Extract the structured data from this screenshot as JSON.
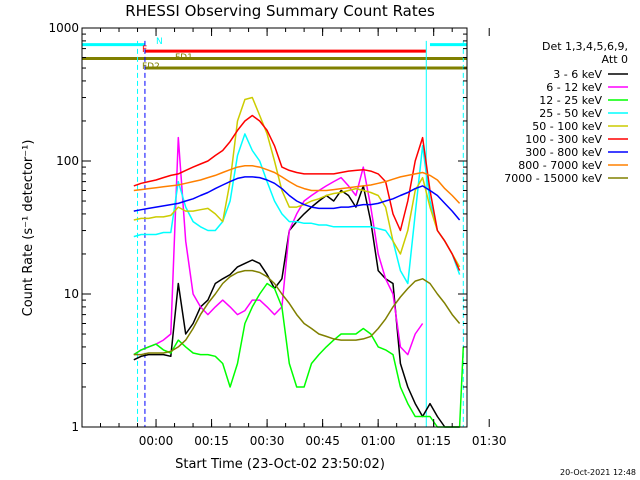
{
  "chart_data": {
    "type": "line",
    "title": "RHESSI Observing Summary Count Rates",
    "xlabel": "Start Time (23-Oct-02 23:50:02)",
    "ylabel": "Count Rate (s⁻¹ detector⁻¹)",
    "y_scale": "log",
    "ylim": [
      1,
      1000
    ],
    "x_unit": "minutes since 23:50:02",
    "xlim": [
      -10,
      94
    ],
    "x_ticks": [
      {
        "v": 10,
        "label": "00:00"
      },
      {
        "v": 25,
        "label": "00:15"
      },
      {
        "v": 40,
        "label": "00:30"
      },
      {
        "v": 55,
        "label": "00:45"
      },
      {
        "v": 70,
        "label": "01:00"
      },
      {
        "v": 85,
        "label": "01:15"
      },
      {
        "v": 100,
        "label": "01:30"
      }
    ],
    "y_ticks": [
      {
        "v": 1,
        "label": "1"
      },
      {
        "v": 10,
        "label": "10"
      },
      {
        "v": 100,
        "label": "100"
      },
      {
        "v": 1000,
        "label": "1000"
      }
    ],
    "legend_header": [
      "Det 1,3,4,5,6,9,",
      "Att 0"
    ],
    "legend_position": "top-right",
    "timestamp": "20-Oct-2021 12:48",
    "series": [
      {
        "name": "3 - 6 keV",
        "color": "#000000",
        "x": [
          4,
          6,
          8,
          10,
          12,
          14,
          16,
          18,
          20,
          22,
          24,
          26,
          28,
          30,
          32,
          34,
          36,
          38,
          40,
          42,
          44,
          46,
          48,
          50,
          52,
          54,
          56,
          58,
          60,
          62,
          64,
          66,
          68,
          70,
          72,
          74,
          76,
          78,
          80,
          82,
          84,
          86,
          88,
          90,
          92
        ],
        "y": [
          3.2,
          3.4,
          3.5,
          3.5,
          3.5,
          3.4,
          12,
          5,
          6,
          8,
          9,
          12,
          13,
          14,
          16,
          17,
          18,
          17,
          14,
          11,
          13,
          30,
          35,
          40,
          45,
          50,
          55,
          50,
          60,
          55,
          45,
          65,
          35,
          15,
          13,
          12,
          3,
          2,
          1.5,
          1.2,
          1.5,
          1.2,
          1,
          1,
          1
        ]
      },
      {
        "name": "6 - 12 keV",
        "color": "#ff00ff",
        "x": [
          4,
          6,
          8,
          10,
          12,
          14,
          16,
          18,
          20,
          22,
          24,
          26,
          28,
          30,
          32,
          34,
          36,
          38,
          40,
          42,
          44,
          46,
          48,
          50,
          52,
          54,
          56,
          58,
          60,
          62,
          64,
          66,
          68,
          70,
          72,
          74,
          76,
          78,
          80,
          82
        ],
        "y": [
          3.5,
          3.8,
          4,
          4.2,
          4.5,
          5,
          150,
          25,
          10,
          8,
          7,
          8,
          9,
          8,
          7,
          7.5,
          9,
          9,
          8,
          7,
          8,
          30,
          40,
          50,
          55,
          60,
          65,
          70,
          75,
          65,
          55,
          90,
          45,
          20,
          13,
          10,
          4,
          3.5,
          5,
          6
        ]
      },
      {
        "name": "12 - 25 keV",
        "color": "#00ff00",
        "x": [
          4,
          6,
          8,
          10,
          12,
          14,
          16,
          18,
          20,
          22,
          24,
          26,
          28,
          30,
          32,
          34,
          36,
          38,
          40,
          42,
          44,
          46,
          48,
          50,
          52,
          54,
          56,
          58,
          60,
          62,
          64,
          66,
          68,
          70,
          72,
          74,
          76,
          78,
          80,
          82,
          84,
          86,
          88,
          90,
          92,
          93
        ],
        "y": [
          3.5,
          3.8,
          4,
          4.2,
          3.8,
          3.6,
          4.5,
          4,
          3.6,
          3.5,
          3.5,
          3.4,
          3,
          2,
          3,
          6,
          8,
          10,
          12,
          11,
          8,
          3,
          2,
          2,
          3,
          3.5,
          4,
          4.5,
          5,
          5,
          5,
          5.5,
          5,
          4,
          3.8,
          3.5,
          2,
          1.5,
          1.2,
          1.2,
          1.2,
          1,
          1,
          1,
          1,
          4
        ]
      },
      {
        "name": "25 - 50 keV",
        "color": "#00ffff",
        "x": [
          4,
          6,
          8,
          10,
          12,
          14,
          16,
          18,
          20,
          22,
          24,
          26,
          28,
          30,
          32,
          34,
          36,
          38,
          40,
          42,
          44,
          46,
          48,
          50,
          52,
          54,
          56,
          58,
          60,
          62,
          64,
          66,
          68,
          70,
          72,
          74,
          76,
          78,
          80,
          82,
          84,
          86,
          88,
          90,
          92
        ],
        "y": [
          27,
          28,
          28,
          28,
          29,
          29,
          70,
          45,
          35,
          32,
          30,
          30,
          35,
          50,
          110,
          160,
          120,
          100,
          70,
          50,
          40,
          35,
          35,
          34,
          34,
          33,
          33,
          32,
          32,
          32,
          32,
          32,
          32,
          31,
          30,
          25,
          15,
          12,
          40,
          130,
          50,
          30,
          25,
          20,
          14
        ]
      },
      {
        "name": "50 - 100 keV",
        "color": "#cccc00",
        "x": [
          4,
          6,
          8,
          10,
          12,
          14,
          16,
          18,
          20,
          22,
          24,
          26,
          28,
          30,
          32,
          34,
          36,
          38,
          40,
          42,
          44,
          46,
          48,
          50,
          52,
          54,
          56,
          58,
          60,
          62,
          64,
          66,
          68,
          70,
          72,
          74,
          76,
          78,
          80,
          82,
          84,
          86,
          88,
          90,
          92
        ],
        "y": [
          36,
          37,
          37,
          38,
          38,
          39,
          45,
          42,
          42,
          43,
          44,
          40,
          35,
          70,
          200,
          290,
          300,
          220,
          160,
          100,
          60,
          45,
          45,
          47,
          50,
          52,
          55,
          57,
          58,
          60,
          62,
          60,
          58,
          55,
          45,
          25,
          20,
          30,
          60,
          75,
          45,
          30,
          25,
          20,
          16
        ]
      },
      {
        "name": "100 - 300 keV",
        "color": "#ff0000",
        "x": [
          4,
          6,
          8,
          10,
          12,
          14,
          16,
          18,
          20,
          22,
          24,
          26,
          28,
          30,
          32,
          34,
          36,
          38,
          40,
          42,
          44,
          46,
          48,
          50,
          52,
          54,
          56,
          58,
          60,
          62,
          64,
          66,
          68,
          70,
          72,
          74,
          76,
          78,
          80,
          82,
          84,
          86,
          88,
          90,
          92
        ],
        "y": [
          65,
          68,
          70,
          72,
          75,
          78,
          80,
          85,
          90,
          95,
          100,
          110,
          120,
          140,
          170,
          200,
          220,
          200,
          170,
          130,
          90,
          85,
          82,
          80,
          80,
          80,
          80,
          80,
          82,
          84,
          85,
          86,
          84,
          80,
          70,
          40,
          30,
          50,
          100,
          150,
          60,
          30,
          25,
          20,
          15
        ]
      },
      {
        "name": "300 - 800 keV",
        "color": "#0000ff",
        "x": [
          4,
          6,
          8,
          10,
          12,
          14,
          16,
          18,
          20,
          22,
          24,
          26,
          28,
          30,
          32,
          34,
          36,
          38,
          40,
          42,
          44,
          46,
          48,
          50,
          52,
          54,
          56,
          58,
          60,
          62,
          64,
          66,
          68,
          70,
          72,
          74,
          76,
          78,
          80,
          82,
          84,
          86,
          88,
          90,
          92
        ],
        "y": [
          42,
          43,
          44,
          45,
          46,
          47,
          48,
          50,
          52,
          55,
          58,
          62,
          66,
          70,
          74,
          76,
          76,
          75,
          72,
          68,
          62,
          55,
          50,
          47,
          45,
          44,
          44,
          44,
          45,
          45,
          46,
          47,
          47,
          48,
          50,
          52,
          55,
          58,
          62,
          65,
          60,
          55,
          48,
          42,
          36
        ]
      },
      {
        "name": "800 - 7000 keV",
        "color": "#ff8000",
        "x": [
          4,
          6,
          8,
          10,
          12,
          14,
          16,
          18,
          20,
          22,
          24,
          26,
          28,
          30,
          32,
          34,
          36,
          38,
          40,
          42,
          44,
          46,
          48,
          50,
          52,
          54,
          56,
          58,
          60,
          62,
          64,
          66,
          68,
          70,
          72,
          74,
          76,
          78,
          80,
          82,
          84,
          86,
          88,
          90,
          92
        ],
        "y": [
          60,
          61,
          62,
          63,
          64,
          65,
          66,
          68,
          70,
          72,
          75,
          78,
          82,
          86,
          90,
          92,
          92,
          90,
          86,
          82,
          76,
          70,
          65,
          62,
          60,
          60,
          60,
          61,
          62,
          63,
          64,
          65,
          66,
          68,
          70,
          73,
          76,
          78,
          80,
          82,
          78,
          72,
          62,
          55,
          48
        ]
      },
      {
        "name": "7000 - 15000 keV",
        "color": "#808000",
        "x": [
          4,
          6,
          8,
          10,
          12,
          14,
          16,
          18,
          20,
          22,
          24,
          26,
          28,
          30,
          32,
          34,
          36,
          38,
          40,
          42,
          44,
          46,
          48,
          50,
          52,
          54,
          56,
          58,
          60,
          62,
          64,
          66,
          68,
          70,
          72,
          74,
          76,
          78,
          80,
          82,
          84,
          86,
          88,
          90,
          92
        ],
        "y": [
          3.5,
          3.5,
          3.6,
          3.6,
          3.6,
          3.7,
          4,
          4.5,
          5.5,
          7,
          8.5,
          10,
          12,
          13.5,
          14.5,
          15,
          15,
          14.5,
          13.5,
          12,
          10,
          8.5,
          7,
          6,
          5.5,
          5,
          4.8,
          4.6,
          4.5,
          4.5,
          4.5,
          4.6,
          4.8,
          5.5,
          6.5,
          8,
          9.5,
          11,
          12.5,
          13,
          12,
          10,
          8.5,
          7,
          6
        ]
      }
    ],
    "annotations": {
      "flag_n": {
        "label": "N",
        "color": "#00ffff",
        "y": 750,
        "segments": [
          [
            -10,
            7
          ],
          [
            84,
            94
          ]
        ]
      },
      "flag_f": {
        "label": "F",
        "color": "#ff0000",
        "y": 670,
        "segments": [
          [
            7,
            83
          ]
        ]
      },
      "flag_fd1": {
        "label": "FD1",
        "color": "#808000",
        "y": 590,
        "segments": [
          [
            -10,
            94
          ]
        ]
      },
      "flag_fd2": {
        "label": "FD2",
        "color": "#808000",
        "y": 500,
        "segments": [
          [
            7,
            94
          ]
        ]
      },
      "night_lines": [
        {
          "x": 5,
          "color": "#00ffff",
          "dashed": true
        },
        {
          "x": 7,
          "color": "#0000ff",
          "dashed": true
        },
        {
          "x": 83,
          "color": "#00ffff",
          "dashed": false
        },
        {
          "x": 93,
          "color": "#00ffff",
          "dashed": true
        }
      ]
    }
  }
}
